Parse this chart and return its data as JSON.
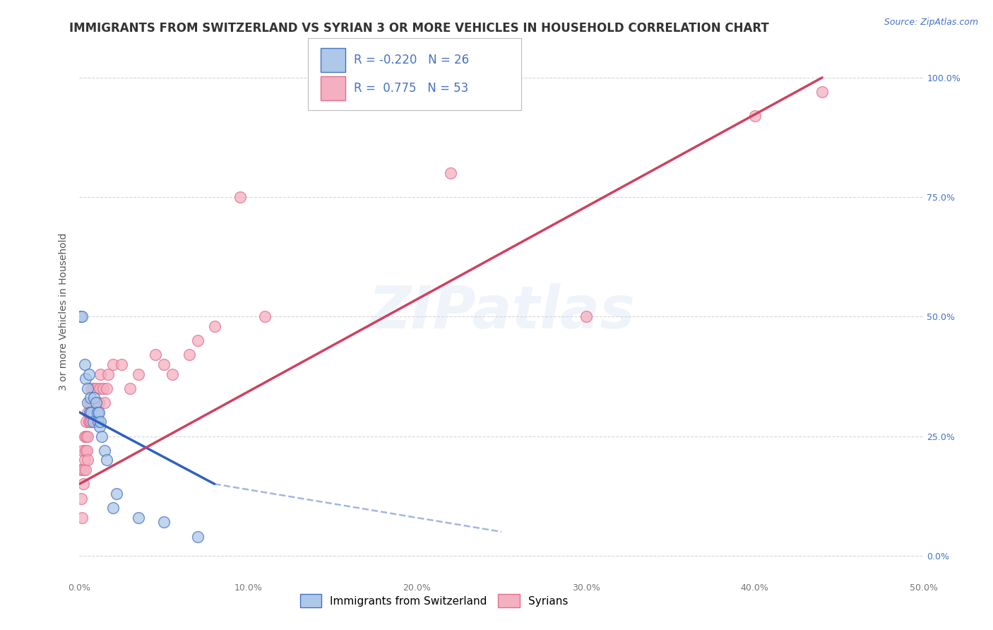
{
  "title": "IMMIGRANTS FROM SWITZERLAND VS SYRIAN 3 OR MORE VEHICLES IN HOUSEHOLD CORRELATION CHART",
  "source": "Source: ZipAtlas.com",
  "ylabel": "3 or more Vehicles in Household",
  "swiss_R": -0.22,
  "swiss_N": 26,
  "syrian_R": 0.775,
  "syrian_N": 53,
  "swiss_color": "#adc8e8",
  "syrian_color": "#f4afc0",
  "swiss_edge_color": "#4472c4",
  "syrian_edge_color": "#e07090",
  "swiss_line_color": "#3060c0",
  "syrian_line_color": "#d04060",
  "background_color": "#ffffff",
  "grid_color": "#cccccc",
  "title_color": "#333333",
  "right_axis_color": "#4472c4",
  "watermark": "ZIPatlas",
  "xlim": [
    0.0,
    50.0
  ],
  "ylim": [
    -5.0,
    107.0
  ],
  "yticks": [
    0.0,
    25.0,
    50.0,
    75.0,
    100.0
  ],
  "ytick_labels": [
    "0.0%",
    "25.0%",
    "50.0%",
    "75.0%",
    "100.0%"
  ],
  "xticks": [
    0.0,
    10.0,
    20.0,
    30.0,
    40.0,
    50.0
  ],
  "xtick_labels": [
    "0.0%",
    "10.0%",
    "20.0%",
    "30.0%",
    "40.0%",
    "50.0%"
  ],
  "swiss_scatter": [
    [
      0.05,
      50.0
    ],
    [
      0.15,
      50.0
    ],
    [
      0.3,
      40.0
    ],
    [
      0.35,
      37.0
    ],
    [
      0.5,
      35.0
    ],
    [
      0.5,
      32.0
    ],
    [
      0.55,
      38.0
    ],
    [
      0.6,
      30.0
    ],
    [
      0.65,
      33.0
    ],
    [
      0.7,
      30.0
    ],
    [
      0.8,
      28.0
    ],
    [
      0.85,
      33.0
    ],
    [
      1.0,
      32.0
    ],
    [
      1.05,
      30.0
    ],
    [
      1.1,
      28.0
    ],
    [
      1.15,
      30.0
    ],
    [
      1.2,
      27.0
    ],
    [
      1.25,
      28.0
    ],
    [
      1.3,
      25.0
    ],
    [
      1.5,
      22.0
    ],
    [
      1.6,
      20.0
    ],
    [
      2.0,
      10.0
    ],
    [
      2.2,
      13.0
    ],
    [
      3.5,
      8.0
    ],
    [
      5.0,
      7.0
    ],
    [
      7.0,
      4.0
    ]
  ],
  "syrian_scatter": [
    [
      0.05,
      18.0
    ],
    [
      0.1,
      12.0
    ],
    [
      0.15,
      8.0
    ],
    [
      0.2,
      22.0
    ],
    [
      0.25,
      18.0
    ],
    [
      0.25,
      15.0
    ],
    [
      0.3,
      25.0
    ],
    [
      0.3,
      20.0
    ],
    [
      0.35,
      22.0
    ],
    [
      0.35,
      18.0
    ],
    [
      0.4,
      28.0
    ],
    [
      0.4,
      25.0
    ],
    [
      0.45,
      22.0
    ],
    [
      0.5,
      30.0
    ],
    [
      0.5,
      25.0
    ],
    [
      0.5,
      20.0
    ],
    [
      0.55,
      28.0
    ],
    [
      0.6,
      32.0
    ],
    [
      0.6,
      28.0
    ],
    [
      0.65,
      30.0
    ],
    [
      0.7,
      35.0
    ],
    [
      0.7,
      28.0
    ],
    [
      0.75,
      32.0
    ],
    [
      0.8,
      35.0
    ],
    [
      0.8,
      30.0
    ],
    [
      0.85,
      30.0
    ],
    [
      0.9,
      32.0
    ],
    [
      1.0,
      35.0
    ],
    [
      1.0,
      28.0
    ],
    [
      1.1,
      30.0
    ],
    [
      1.15,
      32.0
    ],
    [
      1.2,
      35.0
    ],
    [
      1.25,
      38.0
    ],
    [
      1.4,
      35.0
    ],
    [
      1.5,
      32.0
    ],
    [
      1.6,
      35.0
    ],
    [
      1.7,
      38.0
    ],
    [
      2.0,
      40.0
    ],
    [
      2.5,
      40.0
    ],
    [
      3.0,
      35.0
    ],
    [
      3.5,
      38.0
    ],
    [
      4.5,
      42.0
    ],
    [
      5.0,
      40.0
    ],
    [
      5.5,
      38.0
    ],
    [
      6.5,
      42.0
    ],
    [
      7.0,
      45.0
    ],
    [
      8.0,
      48.0
    ],
    [
      9.5,
      75.0
    ],
    [
      11.0,
      50.0
    ],
    [
      30.0,
      50.0
    ],
    [
      40.0,
      92.0
    ],
    [
      44.0,
      97.0
    ]
  ],
  "syrian_outlier": [
    22.0,
    80.0
  ],
  "swiss_line_solid": {
    "x0": 0.0,
    "y0": 30.0,
    "x1": 8.0,
    "y1": 15.0
  },
  "swiss_line_dashed": {
    "x0": 8.0,
    "y0": 15.0,
    "x1": 25.0,
    "y1": 5.0
  },
  "syrian_line": {
    "x0": 0.0,
    "y0": 15.0,
    "x1": 44.0,
    "y1": 100.0
  },
  "legend_swiss_label": "Immigrants from Switzerland",
  "legend_syrian_label": "Syrians",
  "title_fontsize": 12,
  "axis_label_fontsize": 10,
  "tick_fontsize": 9,
  "legend_fontsize": 11
}
